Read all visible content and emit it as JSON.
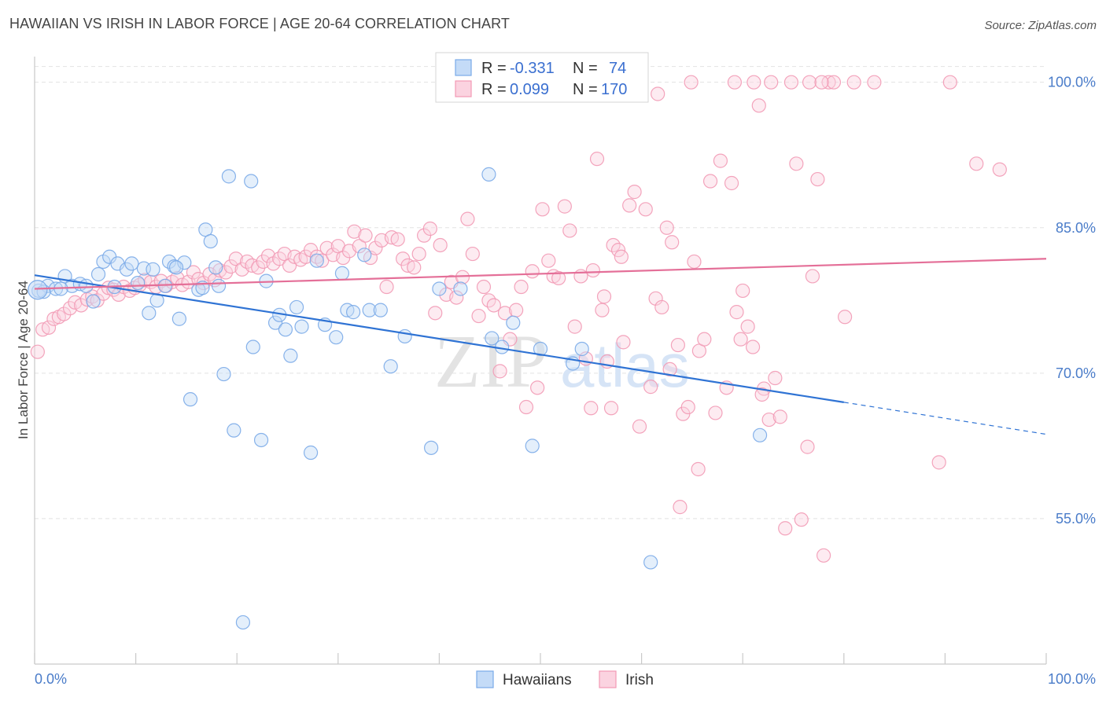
{
  "title": "HAWAIIAN VS IRISH IN LABOR FORCE | AGE 20-64 CORRELATION CHART",
  "source": "Source: ZipAtlas.com",
  "watermark": {
    "zip": "ZIP",
    "atlas": "atlas"
  },
  "legend": {
    "rows": [
      {
        "r_label": "R = ",
        "r_value": "-0.331",
        "n_label": "N = ",
        "n_value": "74"
      },
      {
        "r_label": "R = ",
        "r_value": "0.099",
        "n_label": "N = ",
        "n_value": "170"
      }
    ]
  },
  "chart_data": {
    "type": "scatter",
    "xlabel": "",
    "ylabel": "In Labor Force | Age 20-64",
    "xlim": [
      0,
      100
    ],
    "ylim": [
      40,
      102
    ],
    "x_tick_labels": [
      "0.0%",
      "100.0%"
    ],
    "y_ticks": [
      55,
      70,
      85,
      100
    ],
    "y_tick_labels": [
      "55.0%",
      "70.0%",
      "85.0%",
      "100.0%"
    ],
    "grid": true,
    "legend_position": "bottom-center",
    "colors": {
      "hawaiians": "#7aaae8",
      "irish": "#f29ab5",
      "hawaiians_line": "#2f73d4",
      "irish_line": "#e46f98"
    },
    "series": [
      {
        "name": "Hawaiians",
        "trend": {
          "x0": 0,
          "y0": 80.1,
          "x1": 80,
          "y1": 67.0,
          "dashed_to": 100,
          "dashed_y": 63.7
        },
        "points": [
          [
            0.4,
            78.5
          ],
          [
            1.3,
            79.0
          ],
          [
            2.1,
            78.7
          ],
          [
            3.0,
            80.0
          ],
          [
            3.7,
            79.0
          ],
          [
            4.5,
            79.2
          ],
          [
            5.8,
            77.4
          ],
          [
            6.3,
            80.2
          ],
          [
            6.8,
            81.5
          ],
          [
            7.4,
            82.0
          ],
          [
            8.2,
            81.3
          ],
          [
            9.1,
            80.7
          ],
          [
            10.2,
            79.3
          ],
          [
            10.8,
            80.8
          ],
          [
            11.3,
            76.2
          ],
          [
            12.1,
            77.5
          ],
          [
            12.9,
            79.0
          ],
          [
            13.3,
            81.5
          ],
          [
            13.8,
            81.0
          ],
          [
            14.3,
            75.6
          ],
          [
            14.8,
            81.4
          ],
          [
            15.4,
            67.3
          ],
          [
            16.2,
            78.6
          ],
          [
            16.6,
            78.8
          ],
          [
            16.9,
            84.8
          ],
          [
            17.4,
            83.6
          ],
          [
            17.9,
            80.9
          ],
          [
            18.7,
            69.9
          ],
          [
            19.2,
            90.3
          ],
          [
            19.7,
            64.1
          ],
          [
            20.6,
            44.3
          ],
          [
            21.4,
            89.8
          ],
          [
            21.6,
            72.7
          ],
          [
            22.4,
            63.1
          ],
          [
            22.9,
            79.5
          ],
          [
            23.8,
            75.2
          ],
          [
            24.2,
            76.0
          ],
          [
            24.8,
            74.5
          ],
          [
            25.3,
            71.8
          ],
          [
            25.9,
            76.8
          ],
          [
            27.3,
            61.8
          ],
          [
            27.9,
            81.6
          ],
          [
            28.7,
            75.0
          ],
          [
            29.8,
            73.7
          ],
          [
            30.4,
            80.3
          ],
          [
            30.9,
            76.5
          ],
          [
            31.5,
            76.3
          ],
          [
            32.6,
            82.2
          ],
          [
            33.1,
            76.5
          ],
          [
            35.2,
            70.7
          ],
          [
            36.6,
            73.8
          ],
          [
            39.2,
            62.3
          ],
          [
            40.0,
            78.7
          ],
          [
            42.1,
            78.7
          ],
          [
            44.9,
            90.5
          ],
          [
            45.2,
            73.6
          ],
          [
            46.2,
            72.7
          ],
          [
            47.3,
            75.2
          ],
          [
            49.2,
            62.5
          ],
          [
            50.0,
            72.5
          ],
          [
            53.2,
            71.0
          ],
          [
            54.1,
            72.5
          ],
          [
            60.9,
            50.5
          ],
          [
            71.7,
            63.6
          ],
          [
            0.9,
            78.4
          ],
          [
            2.6,
            78.7
          ],
          [
            5.1,
            79.0
          ],
          [
            7.9,
            78.9
          ],
          [
            9.6,
            81.3
          ],
          [
            11.7,
            80.7
          ],
          [
            14.0,
            80.9
          ],
          [
            18.2,
            79.0
          ],
          [
            26.4,
            74.8
          ],
          [
            34.2,
            76.5
          ]
        ]
      },
      {
        "name": "Irish",
        "trend": {
          "x0": 0,
          "y0": 78.7,
          "x1": 100,
          "y1": 81.8
        },
        "points": [
          [
            0.3,
            72.2
          ],
          [
            0.8,
            74.5
          ],
          [
            1.4,
            74.7
          ],
          [
            1.9,
            75.6
          ],
          [
            2.4,
            75.8
          ],
          [
            2.9,
            76.1
          ],
          [
            3.5,
            76.7
          ],
          [
            4.0,
            77.3
          ],
          [
            4.6,
            77.0
          ],
          [
            5.2,
            77.6
          ],
          [
            5.7,
            77.9
          ],
          [
            6.2,
            77.5
          ],
          [
            6.8,
            78.2
          ],
          [
            7.3,
            78.8
          ],
          [
            7.8,
            78.6
          ],
          [
            8.3,
            78.1
          ],
          [
            8.8,
            78.9
          ],
          [
            9.4,
            78.5
          ],
          [
            9.9,
            78.8
          ],
          [
            10.4,
            79.1
          ],
          [
            10.9,
            79.6
          ],
          [
            11.5,
            79.4
          ],
          [
            12.0,
            78.9
          ],
          [
            12.5,
            79.5
          ],
          [
            13.0,
            79.0
          ],
          [
            13.6,
            79.4
          ],
          [
            14.1,
            79.8
          ],
          [
            14.6,
            79.1
          ],
          [
            15.2,
            79.4
          ],
          [
            15.7,
            80.4
          ],
          [
            16.2,
            79.7
          ],
          [
            16.7,
            79.3
          ],
          [
            17.3,
            80.2
          ],
          [
            17.8,
            79.6
          ],
          [
            18.3,
            80.6
          ],
          [
            18.9,
            80.4
          ],
          [
            19.4,
            81.0
          ],
          [
            19.9,
            81.8
          ],
          [
            20.5,
            80.7
          ],
          [
            21.0,
            81.5
          ],
          [
            21.5,
            81.1
          ],
          [
            22.1,
            80.9
          ],
          [
            22.6,
            81.5
          ],
          [
            23.1,
            82.1
          ],
          [
            23.6,
            81.3
          ],
          [
            24.2,
            81.8
          ],
          [
            24.7,
            82.3
          ],
          [
            25.2,
            81.1
          ],
          [
            25.7,
            82.0
          ],
          [
            26.3,
            81.7
          ],
          [
            26.8,
            82.0
          ],
          [
            27.3,
            82.7
          ],
          [
            27.9,
            82.0
          ],
          [
            28.4,
            81.6
          ],
          [
            28.9,
            82.9
          ],
          [
            29.5,
            82.2
          ],
          [
            30.0,
            83.1
          ],
          [
            30.5,
            81.9
          ],
          [
            31.1,
            82.6
          ],
          [
            31.6,
            84.6
          ],
          [
            32.1,
            83.1
          ],
          [
            32.7,
            84.2
          ],
          [
            33.2,
            81.9
          ],
          [
            33.7,
            82.9
          ],
          [
            34.3,
            83.7
          ],
          [
            34.8,
            78.9
          ],
          [
            35.3,
            84.0
          ],
          [
            35.9,
            83.8
          ],
          [
            36.4,
            81.8
          ],
          [
            36.9,
            81.1
          ],
          [
            37.5,
            80.9
          ],
          [
            38.0,
            82.3
          ],
          [
            38.5,
            84.2
          ],
          [
            39.1,
            84.9
          ],
          [
            39.6,
            76.2
          ],
          [
            40.1,
            83.2
          ],
          [
            40.7,
            78.1
          ],
          [
            41.2,
            79.4
          ],
          [
            41.7,
            77.8
          ],
          [
            42.3,
            79.9
          ],
          [
            42.8,
            85.9
          ],
          [
            43.3,
            82.3
          ],
          [
            43.9,
            75.9
          ],
          [
            44.4,
            78.9
          ],
          [
            44.9,
            77.5
          ],
          [
            45.4,
            77.0
          ],
          [
            46.0,
            70.2
          ],
          [
            46.5,
            76.2
          ],
          [
            47.0,
            73.5
          ],
          [
            47.6,
            76.5
          ],
          [
            48.1,
            78.9
          ],
          [
            48.6,
            66.5
          ],
          [
            49.2,
            80.5
          ],
          [
            49.7,
            68.5
          ],
          [
            50.2,
            86.9
          ],
          [
            50.8,
            81.6
          ],
          [
            51.3,
            80.0
          ],
          [
            51.8,
            79.8
          ],
          [
            52.4,
            87.2
          ],
          [
            52.9,
            84.7
          ],
          [
            53.4,
            74.8
          ],
          [
            54.0,
            80.0
          ],
          [
            54.5,
            71.5
          ],
          [
            55.0,
            66.4
          ],
          [
            55.6,
            92.1
          ],
          [
            56.1,
            76.5
          ],
          [
            56.6,
            71.2
          ],
          [
            57.2,
            83.2
          ],
          [
            57.7,
            82.7
          ],
          [
            58.2,
            73.2
          ],
          [
            58.8,
            87.3
          ],
          [
            59.3,
            88.7
          ],
          [
            59.8,
            64.5
          ],
          [
            60.4,
            86.9
          ],
          [
            60.9,
            68.6
          ],
          [
            61.4,
            77.7
          ],
          [
            62.0,
            76.8
          ],
          [
            62.5,
            85.0
          ],
          [
            63.0,
            83.5
          ],
          [
            63.6,
            72.9
          ],
          [
            64.1,
            65.8
          ],
          [
            64.6,
            66.5
          ],
          [
            65.2,
            81.5
          ],
          [
            65.7,
            72.3
          ],
          [
            66.2,
            73.5
          ],
          [
            66.8,
            89.8
          ],
          [
            67.3,
            65.9
          ],
          [
            67.8,
            91.9
          ],
          [
            68.4,
            68.5
          ],
          [
            68.9,
            89.6
          ],
          [
            69.4,
            76.3
          ],
          [
            70.0,
            78.5
          ],
          [
            70.5,
            74.8
          ],
          [
            71.0,
            72.7
          ],
          [
            71.6,
            97.6
          ],
          [
            72.1,
            68.4
          ],
          [
            72.6,
            65.2
          ],
          [
            73.2,
            69.5
          ],
          [
            73.7,
            65.5
          ],
          [
            74.2,
            54.0
          ],
          [
            74.8,
            100.0
          ],
          [
            75.3,
            91.6
          ],
          [
            75.8,
            54.9
          ],
          [
            76.4,
            62.4
          ],
          [
            76.9,
            80.0
          ],
          [
            77.4,
            90.0
          ],
          [
            78.0,
            51.2
          ],
          [
            78.5,
            100.0
          ],
          [
            79.0,
            100.0
          ],
          [
            80.1,
            75.8
          ],
          [
            81.0,
            100.0
          ],
          [
            83.0,
            100.0
          ],
          [
            89.4,
            60.8
          ],
          [
            90.5,
            100.0
          ],
          [
            93.1,
            91.6
          ],
          [
            95.4,
            91.0
          ],
          [
            64.9,
            100.0
          ],
          [
            69.2,
            100.0
          ],
          [
            71.1,
            100.0
          ],
          [
            72.8,
            100.0
          ],
          [
            76.6,
            100.0
          ],
          [
            77.8,
            100.0
          ],
          [
            61.6,
            98.8
          ],
          [
            58.0,
            82.0
          ],
          [
            57.0,
            66.4
          ],
          [
            55.2,
            80.6
          ],
          [
            56.3,
            77.9
          ],
          [
            62.8,
            70.4
          ],
          [
            65.6,
            60.1
          ],
          [
            63.8,
            56.2
          ],
          [
            69.8,
            73.5
          ],
          [
            71.9,
            67.8
          ]
        ]
      }
    ]
  },
  "bottom_legend": {
    "items": [
      "Hawaiians",
      "Irish"
    ]
  }
}
